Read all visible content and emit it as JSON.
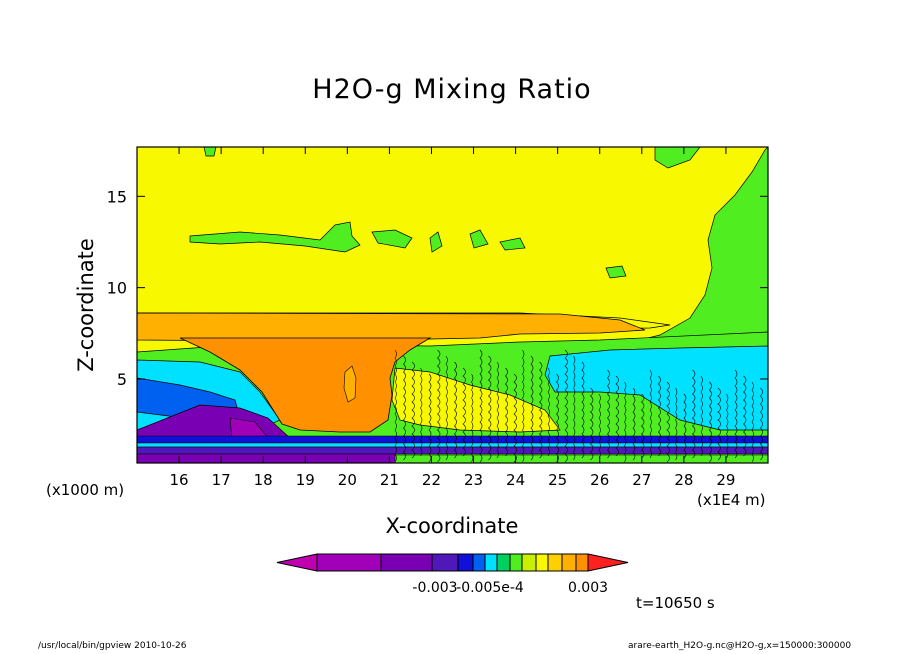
{
  "chart_data": {
    "type": "heatmap",
    "title": "H2O-g Mixing Ratio",
    "xlabel": "X-coordinate",
    "ylabel": "Z-coordinate",
    "x_unit_label": "(x1000 m)",
    "x_scale_label": "(x1E4 m)",
    "x_ticks": [
      16,
      17,
      18,
      19,
      20,
      21,
      22,
      23,
      24,
      25,
      26,
      27,
      28,
      29
    ],
    "y_ticks": [
      5,
      10,
      15
    ],
    "xlim": [
      15.0,
      30.0
    ],
    "ylim": [
      0.4,
      17.7
    ],
    "colorbar": {
      "colors": [
        "#c000b0",
        "#a000b8",
        "#7a00b4",
        "#5018b8",
        "#1010d8",
        "#0060f0",
        "#00e0ff",
        "#00d060",
        "#50ee20",
        "#c8f000",
        "#f8f800",
        "#ffd000",
        "#ffb000",
        "#ff9000",
        "#ff2020"
      ],
      "tick_labels": [
        "-0.003",
        "-0.005e-4",
        "0.003"
      ],
      "extend": "both"
    },
    "fields": {
      "top_layer_z": [
        17.7,
        8.4
      ],
      "yellow_band_z": [
        7.0,
        8.4
      ],
      "orange_plume_z": [
        1.3,
        7.1
      ],
      "low_bands_z": [
        0.4,
        2.0
      ],
      "notes": ""
    },
    "time_label": "t=10650 s",
    "footer_left": "/usr/local/bin/gpview   2010-10-26",
    "footer_right": "arare-earth_H2O-g.nc@H2O-g,x=150000:300000"
  }
}
